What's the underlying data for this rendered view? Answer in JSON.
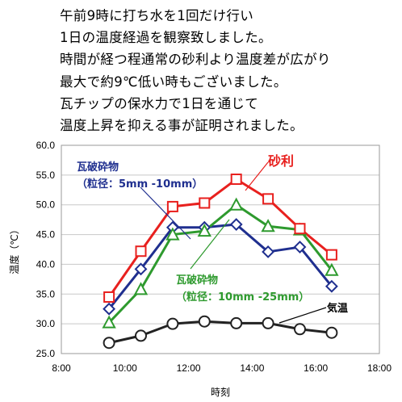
{
  "intro": {
    "lines": [
      "午前9時に打ち水を1回だけ行い",
      "1日の温度経過を観察致しました。",
      "時間が経つ程通常の砂利より温度差が広がり",
      "最大で約9℃低い時もございました。",
      "瓦チップの保水力で1日を通じて",
      "温度上昇を抑える事が証明されました。"
    ]
  },
  "chart_data": {
    "type": "line",
    "xlabel": "時刻",
    "ylabel": "温度（℃）",
    "xlim": [
      "8:00",
      "18:00"
    ],
    "ylim": [
      25.0,
      60.0
    ],
    "x_ticks": [
      "8:00",
      "10:00",
      "12:00",
      "14:00",
      "16:00",
      "18:00"
    ],
    "y_ticks": [
      "25.0",
      "30.0",
      "35.0",
      "40.0",
      "45.0",
      "50.0",
      "55.0",
      "60.0"
    ],
    "grid": "horizontal",
    "legend": "none",
    "x": [
      "9:30",
      "10:30",
      "11:30",
      "12:30",
      "13:30",
      "14:30",
      "15:30",
      "16:30"
    ],
    "series": [
      {
        "name": "砂利",
        "color": "#e8201e",
        "marker": "square",
        "values": [
          34.5,
          42.2,
          49.7,
          50.3,
          54.3,
          51.0,
          46.0,
          41.6
        ]
      },
      {
        "name": "瓦破砕物（粒径：10mm -25mm）",
        "color": "#2e9a2e",
        "marker": "triangle",
        "values": [
          30.2,
          35.8,
          45.0,
          45.6,
          50.0,
          46.4,
          45.8,
          39.0
        ]
      },
      {
        "name": "瓦破砕物（粒径：5mm -10mm）",
        "color": "#1f2f8f",
        "marker": "diamond",
        "values": [
          32.5,
          39.2,
          46.2,
          46.2,
          46.7,
          42.1,
          42.9,
          36.3
        ]
      },
      {
        "name": "気温",
        "color": "#222222",
        "marker": "circle",
        "values": [
          26.8,
          28.0,
          30.0,
          30.4,
          30.1,
          30.1,
          29.1,
          28.5
        ]
      }
    ],
    "annotations": [
      {
        "lines": [
          "砂利"
        ],
        "color": "#e8201e"
      },
      {
        "lines": [
          "瓦破砕物",
          "（粒径：5mm -10mm）"
        ],
        "color": "#1f2f8f"
      },
      {
        "lines": [
          "瓦破砕物",
          "（粒径：10mm -25mm）"
        ],
        "color": "#2e9a2e"
      },
      {
        "lines": [
          "気温"
        ],
        "color": "#000000"
      }
    ]
  }
}
